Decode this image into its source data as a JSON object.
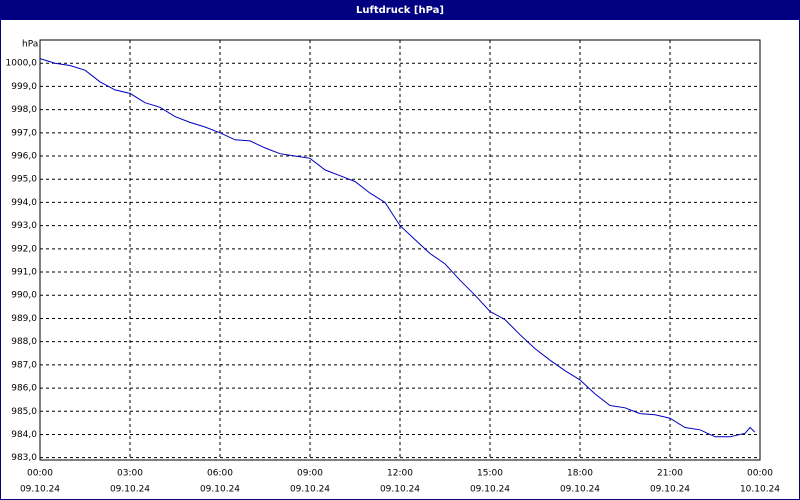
{
  "chart_data": {
    "type": "line",
    "title": "Luftdruck [hPa]",
    "y_unit": "hPa",
    "x": [
      0,
      0.5,
      1,
      1.5,
      2,
      2.5,
      3,
      3.5,
      4,
      4.5,
      5,
      5.5,
      6,
      6.5,
      7,
      7.5,
      8,
      8.5,
      9,
      9.5,
      10,
      10.5,
      11,
      11.5,
      12,
      12.5,
      13,
      13.5,
      14,
      14.5,
      15,
      15.5,
      16,
      16.5,
      17,
      17.5,
      18,
      18.5,
      19,
      19.5,
      20,
      20.5,
      21,
      21.5,
      22,
      22.5,
      23,
      23.5,
      23.67,
      23.83
    ],
    "series": [
      {
        "name": "Luftdruck",
        "color": "#0000c0",
        "values": [
          1000.2,
          1000.0,
          999.9,
          999.7,
          999.2,
          998.85,
          998.7,
          998.3,
          998.1,
          997.7,
          997.45,
          997.25,
          997.0,
          996.7,
          996.65,
          996.35,
          996.1,
          996.0,
          995.9,
          995.4,
          995.15,
          994.9,
          994.4,
          994.0,
          993.0,
          992.4,
          991.8,
          991.35,
          990.65,
          990.0,
          989.3,
          988.95,
          988.3,
          987.7,
          987.2,
          986.75,
          986.35,
          985.75,
          985.25,
          985.15,
          984.9,
          984.85,
          984.7,
          984.3,
          984.2,
          983.9,
          983.9,
          984.05,
          984.3,
          984.1
        ]
      }
    ],
    "xlim": [
      0,
      24
    ],
    "ylim": [
      982.9,
      1001.0
    ],
    "xticks": [
      {
        "value": 0,
        "label": "00:00"
      },
      {
        "value": 3,
        "label": "03:00"
      },
      {
        "value": 6,
        "label": "06:00"
      },
      {
        "value": 9,
        "label": "09:00"
      },
      {
        "value": 12,
        "label": "12:00"
      },
      {
        "value": 15,
        "label": "15:00"
      },
      {
        "value": 18,
        "label": "18:00"
      },
      {
        "value": 21,
        "label": "21:00"
      },
      {
        "value": 24,
        "label": "00:00"
      }
    ],
    "xtick_dates": [
      "09.10.24",
      "09.10.24",
      "09.10.24",
      "09.10.24",
      "09.10.24",
      "09.10.24",
      "09.10.24",
      "09.10.24",
      "10.10.24"
    ],
    "yticks": [
      {
        "value": 983,
        "label": "983,0"
      },
      {
        "value": 984,
        "label": "984,0"
      },
      {
        "value": 985,
        "label": "985,0"
      },
      {
        "value": 986,
        "label": "986,0"
      },
      {
        "value": 987,
        "label": "987,0"
      },
      {
        "value": 988,
        "label": "988,0"
      },
      {
        "value": 989,
        "label": "989,0"
      },
      {
        "value": 990,
        "label": "990,0"
      },
      {
        "value": 991,
        "label": "991,0"
      },
      {
        "value": 992,
        "label": "992,0"
      },
      {
        "value": 993,
        "label": "993,0"
      },
      {
        "value": 994,
        "label": "994,0"
      },
      {
        "value": 995,
        "label": "995,0"
      },
      {
        "value": 996,
        "label": "996,0"
      },
      {
        "value": 997,
        "label": "997,0"
      },
      {
        "value": 998,
        "label": "998,0"
      },
      {
        "value": 999,
        "label": "999,0"
      },
      {
        "value": 1000,
        "label": "1000,0"
      }
    ],
    "grid": true
  }
}
